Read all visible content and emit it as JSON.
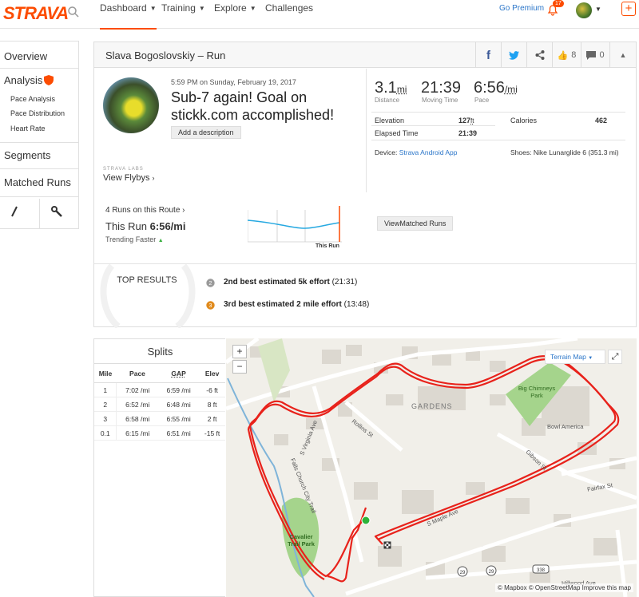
{
  "nav": {
    "logo": "STRAVA",
    "dashboard": "Dashboard",
    "training": "Training",
    "explore": "Explore",
    "challenges": "Challenges",
    "go_premium": "Go Premium",
    "notifications_count": "17",
    "plus": "+"
  },
  "sidebar": {
    "overview": "Overview",
    "analysis": "Analysis",
    "pace_analysis": "Pace Analysis",
    "pace_distribution": "Pace Distribution",
    "heart_rate": "Heart Rate",
    "segments": "Segments",
    "matched_runs": "Matched Runs"
  },
  "activity": {
    "header_title": "Slava Bogoslovskiy – Run",
    "facebook": "f",
    "twitter": "t",
    "kudos_count": "8",
    "comment_count": "0",
    "datetime": "5:59 PM on Sunday, February 19, 2017",
    "name": "Sub-7 again! Goal on stickk.com accomplished!",
    "add_description": "Add a description",
    "labs": "STRAVA LABS",
    "flybys": "View Flybys",
    "distance_val": "3.1",
    "distance_unit": "mi",
    "distance_lbl": "Distance",
    "moving_time_val": "21:39",
    "moving_time_lbl": "Moving Time",
    "pace_val": "6:56",
    "pace_unit": "/mi",
    "pace_lbl": "Pace",
    "elevation_lbl": "Elevation",
    "elevation_val": "127",
    "elevation_unit": "ft",
    "calories_lbl": "Calories",
    "calories_val": "462",
    "elapsed_lbl": "Elapsed Time",
    "elapsed_val": "21:39",
    "device_lbl": "Device:",
    "device_val": "Strava Android App",
    "shoes": "Shoes: Nike Lunarglide 6 (351.3 mi)",
    "route_count": "4 Runs on this Route",
    "this_run_prefix": "This Run",
    "this_run_pace": "6:56/mi",
    "trending": "Trending Faster",
    "this_run_label": "This Run",
    "view_matched": "ViewMatched Runs",
    "top_results": "TOP RESULTS",
    "efforts": [
      {
        "rank": "2",
        "bold": "2nd best estimated 5k effort",
        "time": "(21:31)",
        "color": "#9a9a9a"
      },
      {
        "rank": "3",
        "bold": "3rd best estimated 2 mile effort",
        "time": "(13:48)",
        "color": "#e08a1c"
      }
    ]
  },
  "splits": {
    "title": "Splits",
    "headers": [
      "Mile",
      "Pace",
      "GAP",
      "Elev"
    ],
    "rows": [
      [
        "1",
        "7:02 /mi",
        "6:59 /mi",
        "-6 ft"
      ],
      [
        "2",
        "6:52 /mi",
        "6:48 /mi",
        "8 ft"
      ],
      [
        "3",
        "6:58 /mi",
        "6:55 /mi",
        "2 ft"
      ],
      [
        "0.1",
        "6:15 /mi",
        "6:51 /mi",
        "-15 ft"
      ]
    ]
  },
  "map": {
    "zoom_in": "+",
    "zoom_out": "−",
    "terrain": "Terrain Map",
    "attribution": "© Mapbox © OpenStreetMap Improve this map",
    "labels": {
      "big_chimneys": "Big Chimneys Park",
      "bowl_america": "Bowl America",
      "gardens": "GARDENS",
      "rollins": "Rollins St",
      "virginia": "S Virginia Ave",
      "gibson": "Gibson St",
      "fairfax": "Fairfax St",
      "maple": "S Maple Ave",
      "falls_church": "Falls Church City Trail",
      "cavalier": "Cavalier Trail Park",
      "hillwood": "Hillwood Ave",
      "route29": "29",
      "route338": "338"
    },
    "route_color": "#e8221b"
  }
}
